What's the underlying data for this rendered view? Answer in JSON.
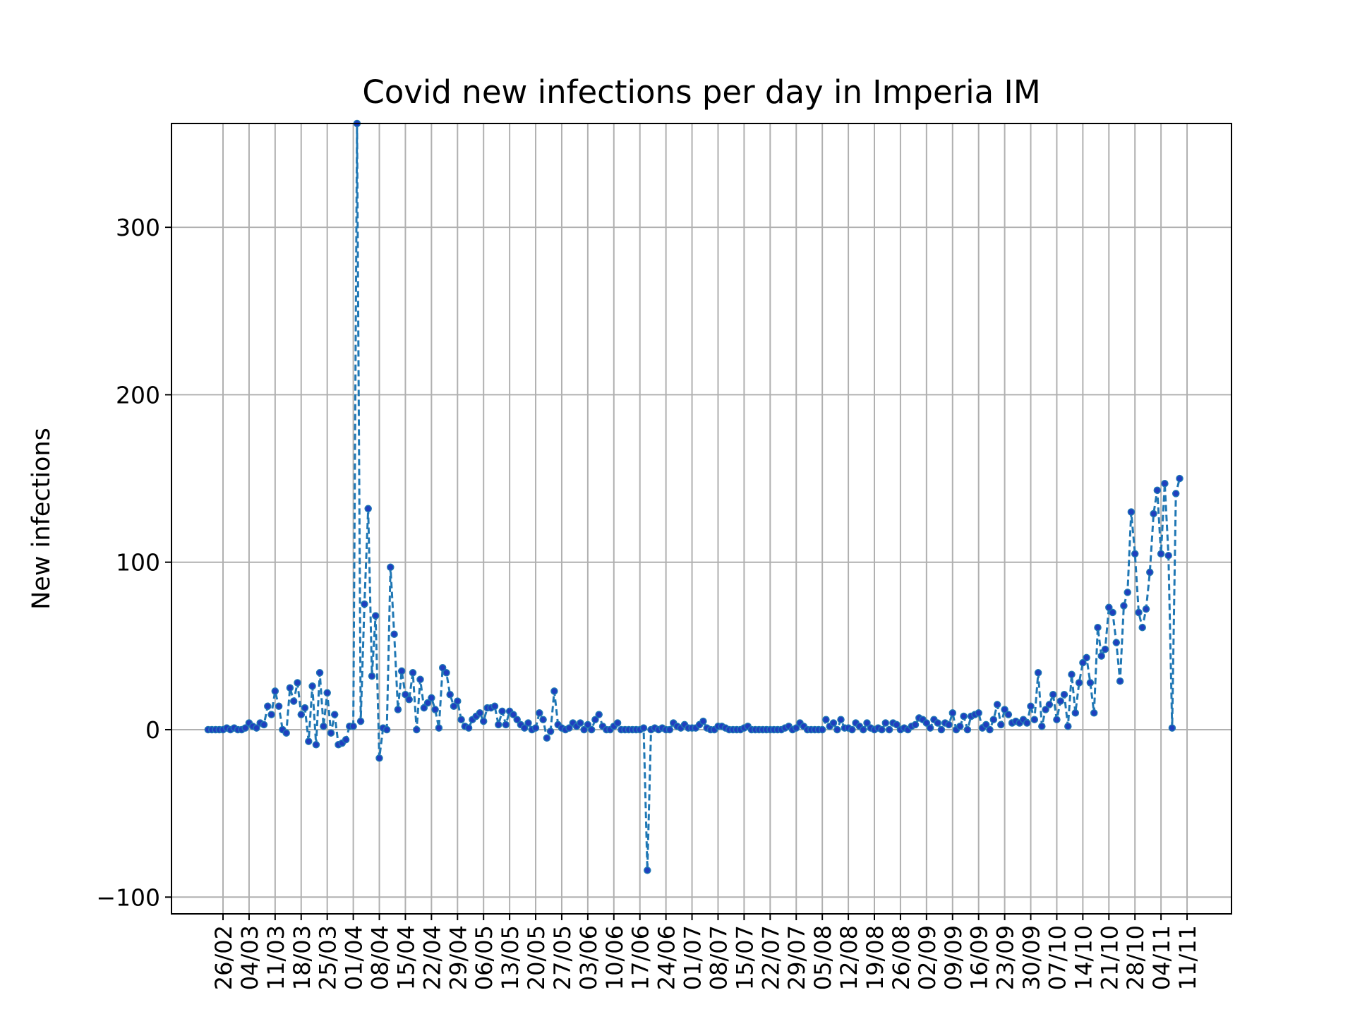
{
  "chart_data": {
    "type": "line",
    "title": "Covid new infections per day in Imperia IM",
    "xlabel": "",
    "ylabel": "New infections",
    "ylim": [
      -110,
      362
    ],
    "yticks": [
      -100,
      0,
      100,
      200,
      300
    ],
    "ytick_labels": [
      "−100",
      "0",
      "100",
      "200",
      "300"
    ],
    "grid": true,
    "legend": "none",
    "line_style": "dashed",
    "marker": "dot",
    "colors": {
      "line": "#1f77b4",
      "marker": "#1f3fbf"
    },
    "xtick_labels": [
      "26/02",
      "04/03",
      "11/03",
      "18/03",
      "25/03",
      "01/04",
      "08/04",
      "15/04",
      "22/04",
      "29/04",
      "06/05",
      "13/05",
      "20/05",
      "27/05",
      "03/06",
      "10/06",
      "17/06",
      "24/06",
      "01/07",
      "08/07",
      "15/07",
      "22/07",
      "29/07",
      "05/08",
      "12/08",
      "19/08",
      "26/08",
      "02/09",
      "09/09",
      "16/09",
      "23/09",
      "30/09",
      "07/10",
      "14/10",
      "21/10",
      "28/10",
      "04/11",
      "11/11"
    ],
    "series": [
      {
        "x_start": "26/02",
        "values": [
          0,
          0,
          0,
          0,
          0,
          1,
          0,
          1,
          0,
          0,
          1,
          4,
          2,
          1,
          4,
          3,
          14,
          9,
          23,
          14,
          0,
          -2,
          25,
          17,
          28,
          9,
          13,
          -7,
          26,
          -9,
          34,
          2,
          22,
          -2,
          9,
          -9,
          -8,
          -6,
          2,
          2,
          362,
          5,
          75,
          132,
          32,
          68,
          -17,
          1,
          0,
          97,
          57,
          12,
          35,
          21,
          18,
          34,
          0,
          30,
          13,
          16,
          19,
          12,
          1,
          37,
          34,
          21,
          14,
          17,
          6,
          2,
          1,
          6,
          8,
          10,
          5,
          13,
          13,
          14,
          3,
          11,
          3,
          11,
          9,
          6,
          3,
          1,
          4,
          0,
          1,
          10,
          6,
          -5,
          -1,
          23,
          3,
          1,
          0,
          1,
          4,
          2,
          4,
          0,
          3,
          0,
          6,
          9,
          2,
          0,
          0,
          2,
          4,
          0,
          0,
          0,
          0,
          0,
          0,
          1,
          -84,
          0,
          1,
          0,
          1,
          0,
          0,
          4,
          2,
          1,
          3,
          1,
          1,
          1,
          3,
          5,
          1,
          0,
          0,
          2,
          2,
          1,
          0,
          0,
          0,
          0,
          1,
          2,
          0,
          0,
          0,
          0,
          0,
          0,
          0,
          0,
          0,
          1,
          2,
          0,
          1,
          4,
          2,
          0,
          0,
          0,
          0,
          0,
          6,
          2,
          4,
          0,
          6,
          1,
          1,
          0,
          4,
          2,
          0,
          4,
          1,
          0,
          1,
          0,
          4,
          0,
          4,
          3,
          0,
          1,
          0,
          2,
          3,
          7,
          6,
          4,
          1,
          6,
          4,
          0,
          4,
          3,
          10,
          0,
          2,
          8,
          0,
          8,
          9,
          10,
          1,
          3,
          0,
          6,
          15,
          3,
          12,
          9,
          4,
          5,
          4,
          6,
          4,
          14,
          6,
          34,
          2,
          12,
          15,
          21,
          6,
          17,
          21,
          2,
          33,
          10,
          28,
          40,
          43,
          28,
          10,
          61,
          44,
          48,
          73,
          70,
          52,
          29,
          74,
          82,
          130,
          105,
          70,
          61,
          72,
          94,
          129,
          143,
          105,
          147,
          104,
          1,
          141,
          150
        ]
      }
    ]
  }
}
